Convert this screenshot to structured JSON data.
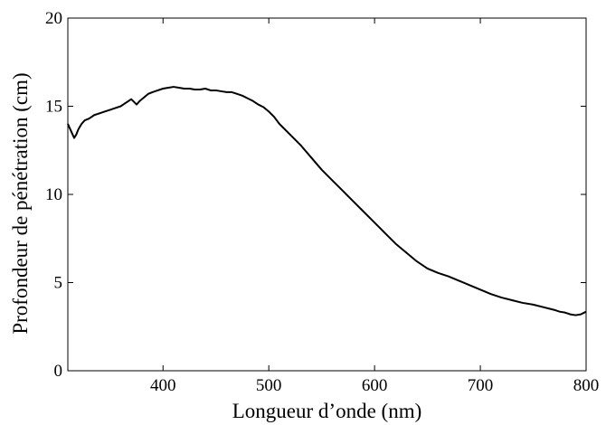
{
  "chart_data": {
    "type": "line",
    "title": "",
    "xlabel": "Longueur d’onde (nm)",
    "ylabel": "Profondeur de pénétration (cm)",
    "xlim": [
      310,
      800
    ],
    "ylim": [
      0,
      20
    ],
    "x_ticks": [
      400,
      500,
      600,
      700,
      800
    ],
    "y_ticks": [
      0,
      5,
      10,
      15,
      20
    ],
    "x_tick_labels": [
      "400",
      "500",
      "600",
      "700",
      "800"
    ],
    "y_tick_labels": [
      "0",
      "5",
      "10",
      "15",
      "20"
    ],
    "grid": false,
    "legend": "none",
    "series": [
      {
        "color": "#000000",
        "x": [
          310,
          313,
          316,
          318,
          320,
          323,
          326,
          330,
          335,
          340,
          345,
          350,
          355,
          360,
          365,
          370,
          375,
          378,
          382,
          386,
          390,
          395,
          400,
          405,
          410,
          415,
          420,
          425,
          430,
          435,
          440,
          445,
          450,
          455,
          460,
          465,
          470,
          475,
          480,
          485,
          490,
          495,
          500,
          505,
          510,
          520,
          530,
          540,
          550,
          560,
          570,
          580,
          590,
          600,
          610,
          620,
          630,
          640,
          650,
          660,
          670,
          680,
          690,
          700,
          710,
          720,
          730,
          740,
          750,
          760,
          770,
          775,
          780,
          785,
          790,
          795,
          800
        ],
        "y": [
          14.0,
          13.6,
          13.2,
          13.4,
          13.7,
          14.0,
          14.2,
          14.3,
          14.5,
          14.6,
          14.7,
          14.8,
          14.9,
          15.0,
          15.2,
          15.4,
          15.1,
          15.3,
          15.5,
          15.7,
          15.8,
          15.9,
          16.0,
          16.05,
          16.1,
          16.05,
          16.0,
          16.0,
          15.95,
          15.95,
          16.0,
          15.9,
          15.9,
          15.85,
          15.8,
          15.8,
          15.7,
          15.6,
          15.45,
          15.3,
          15.1,
          14.95,
          14.7,
          14.4,
          14.0,
          13.4,
          12.8,
          12.1,
          11.4,
          10.8,
          10.2,
          9.6,
          9.0,
          8.4,
          7.8,
          7.2,
          6.7,
          6.2,
          5.8,
          5.55,
          5.35,
          5.1,
          4.85,
          4.6,
          4.35,
          4.15,
          4.0,
          3.85,
          3.75,
          3.6,
          3.45,
          3.35,
          3.3,
          3.2,
          3.15,
          3.2,
          3.35
        ]
      }
    ]
  }
}
